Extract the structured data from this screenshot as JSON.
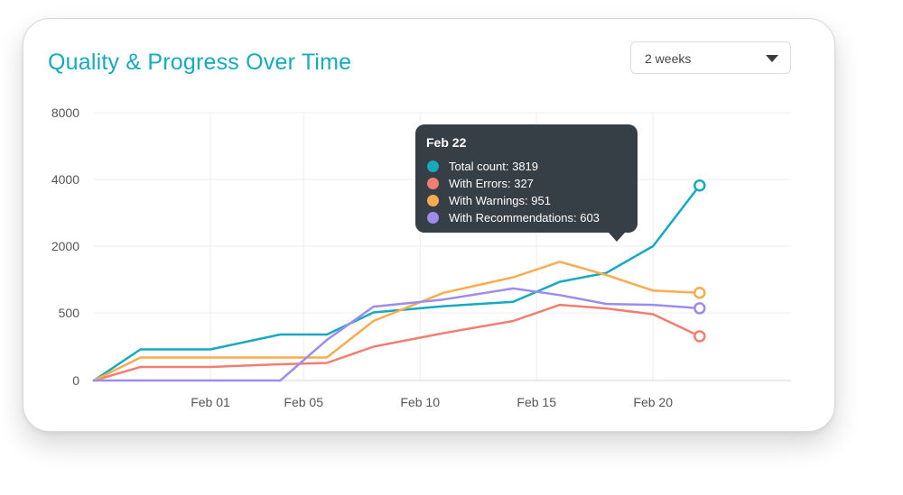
{
  "header": {
    "title": "Quality & Progress Over Time"
  },
  "range_select": {
    "value": "2 weeks"
  },
  "tooltip": {
    "title": "Feb 22",
    "rows": [
      {
        "label": "Total count: 3819",
        "color": "#17a9bf"
      },
      {
        "label": "With Errors: 327",
        "color": "#f07f72"
      },
      {
        "label": "With Warnings: 951",
        "color": "#f9ac4f"
      },
      {
        "label": "With Recommendations: 603",
        "color": "#9e8ced"
      }
    ]
  },
  "chart_data": {
    "type": "line",
    "title": "Quality & Progress Over Time",
    "y_scale": "nonlinear",
    "y_ticks": [
      0,
      500,
      2000,
      4000,
      8000
    ],
    "ylim": [
      0,
      8000
    ],
    "x_tick_labels": [
      "Feb 01",
      "Feb 05",
      "Feb 10",
      "Feb 15",
      "Feb 20"
    ],
    "x_tick_dates": [
      "2023-02-01",
      "2023-02-05",
      "2023-02-10",
      "2023-02-15",
      "2023-02-20"
    ],
    "x": [
      "2023-01-27",
      "2023-01-29",
      "2023-02-01",
      "2023-02-04",
      "2023-02-06",
      "2023-02-08",
      "2023-02-11",
      "2023-02-14",
      "2023-02-16",
      "2023-02-18",
      "2023-02-20",
      "2023-02-22"
    ],
    "series": [
      {
        "name": "Total count",
        "color": "#17a9bf",
        "values": [
          0,
          230,
          230,
          340,
          340,
          510,
          650,
          750,
          1200,
          1400,
          2000,
          3819
        ]
      },
      {
        "name": "With Errors",
        "color": "#f07f72",
        "values": [
          0,
          100,
          100,
          120,
          130,
          250,
          350,
          440,
          680,
          600,
          490,
          327
        ]
      },
      {
        "name": "With Warnings",
        "color": "#f9ac4f",
        "values": [
          0,
          170,
          170,
          170,
          170,
          440,
          950,
          1300,
          1650,
          1350,
          1000,
          951
        ]
      },
      {
        "name": "With Recommendations",
        "color": "#9e8ced",
        "values": [
          0,
          0,
          0,
          0,
          300,
          640,
          800,
          1050,
          900,
          700,
          680,
          603
        ]
      }
    ],
    "grid": true,
    "legend": "tooltip"
  }
}
